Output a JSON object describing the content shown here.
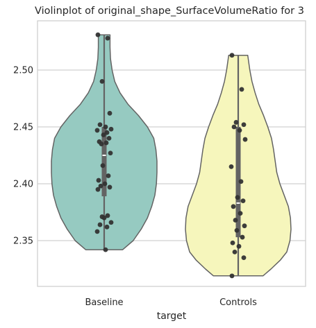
{
  "chart_data": {
    "type": "violin",
    "title": "Violinplot of original_shape_SurfaceVolumeRatio for 3",
    "xlabel": "target",
    "ylabel": "",
    "categories": [
      "Baseline",
      "Controls"
    ],
    "ylim": [
      2.31,
      2.535
    ],
    "yticks": [
      2.35,
      2.4,
      2.45,
      2.5
    ],
    "ytick_labels": [
      "2.35",
      "2.40",
      "2.45",
      "2.50"
    ],
    "grid": "horizontal",
    "colors": {
      "Baseline": "#96cac1",
      "Controls": "#f6f6bc",
      "outline": "#636363",
      "points": "#333333",
      "grid": "#d0d0d0",
      "spine": "#cccccc"
    },
    "violins": [
      {
        "category": "Baseline",
        "min": 2.342,
        "max": 2.531,
        "q1": 2.389,
        "median": 2.425,
        "q3": 2.45,
        "profile": [
          [
            2.342,
            0.35
          ],
          [
            2.35,
            0.55
          ],
          [
            2.36,
            0.7
          ],
          [
            2.37,
            0.82
          ],
          [
            2.38,
            0.9
          ],
          [
            2.39,
            0.96
          ],
          [
            2.4,
            0.99
          ],
          [
            2.41,
            1.0
          ],
          [
            2.42,
            1.0
          ],
          [
            2.43,
            0.98
          ],
          [
            2.44,
            0.94
          ],
          [
            2.45,
            0.82
          ],
          [
            2.46,
            0.65
          ],
          [
            2.47,
            0.45
          ],
          [
            2.48,
            0.3
          ],
          [
            2.49,
            0.2
          ],
          [
            2.5,
            0.15
          ],
          [
            2.51,
            0.12
          ],
          [
            2.52,
            0.11
          ],
          [
            2.531,
            0.11
          ]
        ],
        "points": [
          2.531,
          2.528,
          2.49,
          2.462,
          2.452,
          2.45,
          2.448,
          2.447,
          2.445,
          2.443,
          2.44,
          2.437,
          2.436,
          2.435,
          2.427,
          2.416,
          2.407,
          2.403,
          2.4,
          2.398,
          2.397,
          2.395,
          2.372,
          2.371,
          2.37,
          2.366,
          2.364,
          2.362,
          2.358,
          2.342
        ]
      },
      {
        "category": "Controls",
        "min": 2.319,
        "max": 2.513,
        "q1": 2.353,
        "median": 2.383,
        "q3": 2.45,
        "profile": [
          [
            2.319,
            0.47
          ],
          [
            2.325,
            0.62
          ],
          [
            2.333,
            0.8
          ],
          [
            2.34,
            0.92
          ],
          [
            2.35,
            0.98
          ],
          [
            2.36,
            1.0
          ],
          [
            2.37,
            0.99
          ],
          [
            2.38,
            0.95
          ],
          [
            2.39,
            0.87
          ],
          [
            2.4,
            0.79
          ],
          [
            2.41,
            0.73
          ],
          [
            2.42,
            0.7
          ],
          [
            2.43,
            0.67
          ],
          [
            2.44,
            0.63
          ],
          [
            2.45,
            0.56
          ],
          [
            2.46,
            0.48
          ],
          [
            2.47,
            0.39
          ],
          [
            2.48,
            0.32
          ],
          [
            2.49,
            0.26
          ],
          [
            2.5,
            0.22
          ],
          [
            2.513,
            0.18
          ]
        ],
        "points": [
          2.513,
          2.483,
          2.454,
          2.452,
          2.45,
          2.447,
          2.439,
          2.415,
          2.402,
          2.388,
          2.385,
          2.38,
          2.374,
          2.368,
          2.363,
          2.359,
          2.353,
          2.348,
          2.345,
          2.34,
          2.335,
          2.319
        ]
      }
    ]
  }
}
